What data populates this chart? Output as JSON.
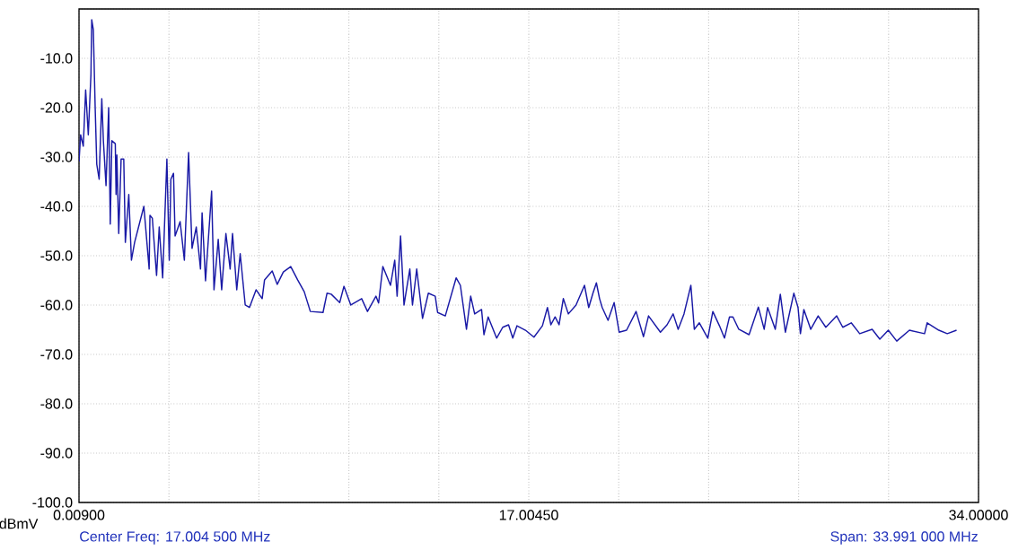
{
  "chart_data": {
    "type": "line",
    "ylabel": "dBmV",
    "annotations": [
      "Center Freq: 17.004 500 MHz",
      "Span: 33.991 000 MHz"
    ],
    "xlim": [
      0.009,
      34.0
    ],
    "ylim": [
      -100,
      0
    ],
    "xticks": [
      {
        "value": 0.009,
        "label": "0.00900"
      },
      {
        "value": 3.4081,
        "label": null
      },
      {
        "value": 6.8072,
        "label": null
      },
      {
        "value": 10.2063,
        "label": null
      },
      {
        "value": 13.6054,
        "label": null
      },
      {
        "value": 17.0045,
        "label": "17.00450"
      },
      {
        "value": 20.4036,
        "label": null
      },
      {
        "value": 23.8027,
        "label": null
      },
      {
        "value": 27.2018,
        "label": null
      },
      {
        "value": 30.6009,
        "label": null
      },
      {
        "value": 34.0,
        "label": "34.00000"
      }
    ],
    "yticks": [
      {
        "value": -100,
        "label": "-100.0"
      },
      {
        "value": -90,
        "label": "-90.0"
      },
      {
        "value": -80,
        "label": "-80.0"
      },
      {
        "value": -70,
        "label": "-70.0"
      },
      {
        "value": -60,
        "label": "-60.0"
      },
      {
        "value": -50,
        "label": "-50.0"
      },
      {
        "value": -40,
        "label": "-40.0"
      },
      {
        "value": -30,
        "label": "-30.0"
      },
      {
        "value": -20,
        "label": "-20.0"
      },
      {
        "value": -10,
        "label": "-10.0"
      },
      {
        "value": 0,
        "label": null
      }
    ],
    "grid": true,
    "series": [
      {
        "color": "#1a1aa6",
        "x": [
          0.01,
          0.07,
          0.17,
          0.26,
          0.36,
          0.46,
          0.49,
          0.55,
          0.62,
          0.68,
          0.77,
          0.87,
          0.93,
          1.03,
          1.13,
          1.19,
          1.25,
          1.38,
          1.41,
          1.44,
          1.51,
          1.6,
          1.7,
          1.76,
          1.89,
          1.99,
          2.11,
          2.46,
          2.66,
          2.69,
          2.78,
          2.94,
          3.04,
          3.17,
          3.33,
          3.42,
          3.48,
          3.58,
          3.64,
          3.83,
          3.99,
          4.15,
          4.28,
          4.44,
          4.6,
          4.66,
          4.79,
          5.02,
          5.11,
          5.27,
          5.4,
          5.56,
          5.72,
          5.81,
          5.97,
          6.1,
          6.29,
          6.45,
          6.7,
          6.93,
          7.02,
          7.31,
          7.5,
          7.73,
          8.01,
          8.27,
          8.52,
          8.75,
          9.23,
          9.38,
          9.54,
          9.86,
          10.02,
          10.28,
          10.69,
          10.91,
          11.23,
          11.33,
          11.49,
          11.78,
          11.94,
          12.03,
          12.16,
          12.29,
          12.51,
          12.61,
          12.77,
          12.99,
          13.21,
          13.47,
          13.56,
          13.85,
          14.26,
          14.42,
          14.65,
          14.81,
          14.96,
          15.22,
          15.31,
          15.47,
          15.79,
          16.02,
          16.24,
          16.4,
          16.56,
          16.88,
          17.2,
          17.52,
          17.71,
          17.84,
          18.0,
          18.15,
          18.31,
          18.5,
          18.79,
          19.11,
          19.27,
          19.43,
          19.56,
          19.68,
          19.78,
          20.0,
          20.23,
          20.42,
          20.7,
          21.06,
          21.34,
          21.53,
          21.98,
          22.23,
          22.46,
          22.65,
          22.87,
          23.13,
          23.26,
          23.45,
          23.77,
          23.96,
          24.21,
          24.4,
          24.59,
          24.72,
          24.94,
          25.33,
          25.68,
          25.9,
          26.03,
          26.32,
          26.51,
          26.7,
          27.02,
          27.18,
          27.27,
          27.4,
          27.66,
          27.94,
          28.23,
          28.64,
          28.87,
          29.19,
          29.51,
          29.98,
          30.27,
          30.59,
          30.91,
          31.39,
          31.96,
          32.06,
          32.5,
          32.82,
          33.17
        ],
        "values": [
          -30.9,
          -25.5,
          -27.8,
          -16.4,
          -25.5,
          -13.3,
          -2.2,
          -4.2,
          -20.0,
          -31.5,
          -34.5,
          -18.2,
          -26.7,
          -35.8,
          -20.0,
          -43.6,
          -26.7,
          -27.3,
          -37.6,
          -29.6,
          -45.5,
          -30.4,
          -30.4,
          -47.3,
          -37.6,
          -50.9,
          -47.3,
          -40.0,
          -52.7,
          -41.8,
          -42.4,
          -54.0,
          -44.2,
          -54.5,
          -30.4,
          -50.9,
          -34.5,
          -33.3,
          -46.0,
          -43.1,
          -50.9,
          -29.1,
          -48.5,
          -44.2,
          -52.7,
          -41.3,
          -55.1,
          -36.9,
          -56.9,
          -46.7,
          -56.9,
          -45.5,
          -52.7,
          -45.5,
          -56.9,
          -49.6,
          -60.0,
          -60.5,
          -56.9,
          -58.7,
          -54.9,
          -53.1,
          -55.8,
          -53.3,
          -52.2,
          -54.9,
          -57.3,
          -61.3,
          -61.5,
          -57.6,
          -57.8,
          -59.5,
          -56.2,
          -60.0,
          -58.7,
          -61.3,
          -58.2,
          -59.6,
          -52.2,
          -56.0,
          -50.9,
          -58.2,
          -46.0,
          -60.0,
          -52.7,
          -60.0,
          -52.7,
          -62.7,
          -57.6,
          -58.2,
          -61.5,
          -62.2,
          -54.5,
          -56.0,
          -64.9,
          -58.2,
          -61.8,
          -60.9,
          -66.0,
          -62.4,
          -66.7,
          -64.5,
          -64.0,
          -66.7,
          -64.2,
          -65.1,
          -66.5,
          -64.2,
          -60.5,
          -64.0,
          -62.4,
          -64.0,
          -58.7,
          -61.8,
          -60.0,
          -56.0,
          -60.5,
          -57.6,
          -55.5,
          -58.7,
          -60.5,
          -63.1,
          -59.5,
          -65.5,
          -65.1,
          -61.3,
          -66.4,
          -62.2,
          -65.5,
          -64.0,
          -61.8,
          -64.9,
          -61.8,
          -56.0,
          -64.9,
          -63.6,
          -66.7,
          -61.3,
          -64.2,
          -66.7,
          -62.4,
          -62.4,
          -64.9,
          -66.0,
          -60.4,
          -64.9,
          -60.5,
          -64.9,
          -57.8,
          -65.5,
          -57.6,
          -60.5,
          -65.8,
          -60.9,
          -64.9,
          -62.2,
          -64.5,
          -62.2,
          -64.5,
          -63.6,
          -65.8,
          -64.9,
          -66.9,
          -65.1,
          -67.3,
          -65.1,
          -65.8,
          -63.6,
          -65.1,
          -65.8,
          -65.1
        ]
      }
    ]
  }
}
